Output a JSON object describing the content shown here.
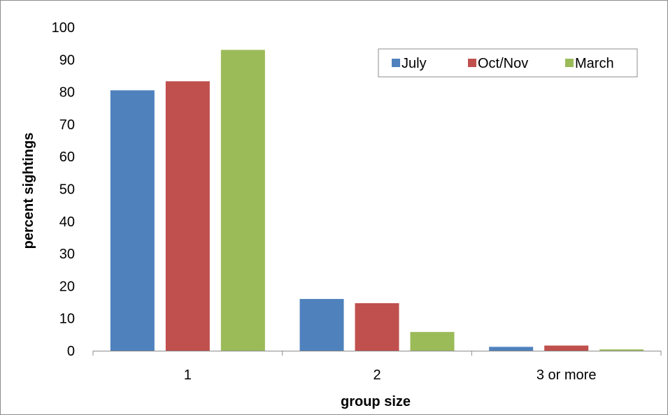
{
  "chart_data": {
    "type": "bar",
    "title": "",
    "xlabel": "group size",
    "ylabel": "percent sightings",
    "categories": [
      "1",
      "2",
      "3 or more"
    ],
    "ylim": [
      0,
      100
    ],
    "yticks": [
      0,
      10,
      20,
      30,
      40,
      50,
      60,
      70,
      80,
      90,
      100
    ],
    "grid": false,
    "legend": "top-right",
    "series": [
      {
        "name": "July",
        "color": "#4f81bd",
        "values": [
          80.5,
          16,
          1.2
        ]
      },
      {
        "name": "Oct/Nov",
        "color": "#c0504d",
        "values": [
          83.3,
          14.7,
          1.6
        ]
      },
      {
        "name": "March",
        "color": "#9bbb59",
        "values": [
          93,
          5.8,
          0.4
        ]
      }
    ]
  }
}
